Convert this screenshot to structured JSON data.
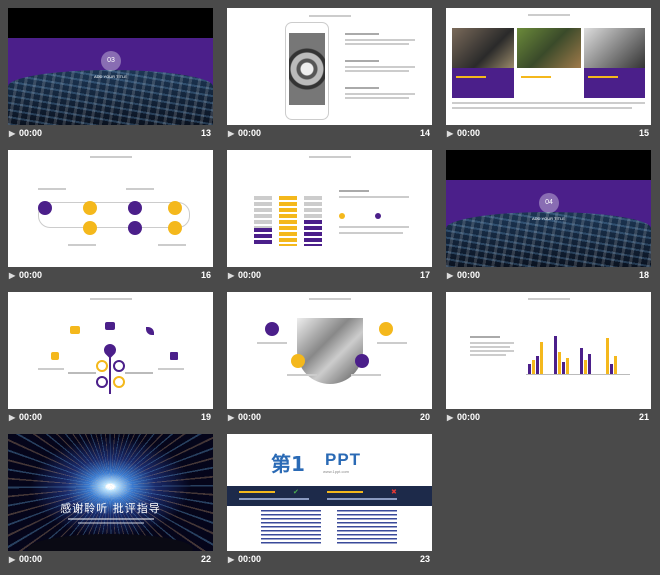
{
  "slides": [
    {
      "num": "13",
      "time": "00:00"
    },
    {
      "num": "14",
      "time": "00:00"
    },
    {
      "num": "15",
      "time": "00:00"
    },
    {
      "num": "16",
      "time": "00:00"
    },
    {
      "num": "17",
      "time": "00:00"
    },
    {
      "num": "18",
      "time": "00:00"
    },
    {
      "num": "19",
      "time": "00:00"
    },
    {
      "num": "20",
      "time": "00:00"
    },
    {
      "num": "21",
      "time": "00:00"
    },
    {
      "num": "22",
      "time": "00:00"
    },
    {
      "num": "23",
      "time": "00:00"
    }
  ],
  "slide13": {
    "badge": "03",
    "title": "ADD YOUR TITLE"
  },
  "slide18": {
    "badge": "04",
    "title": "ADD YOUR TITLE"
  },
  "slide22": {
    "title": "感谢聆听 批评指导"
  },
  "slide23": {
    "logo_main": "第1",
    "logo_ppt": "PPT",
    "logo_sub": "www.1ppt.com"
  },
  "colors": {
    "accent_purple": "#4b1f8a",
    "accent_gold": "#f4b81c",
    "background": "#4a4a4a"
  },
  "icons": {
    "play": "play-icon"
  }
}
